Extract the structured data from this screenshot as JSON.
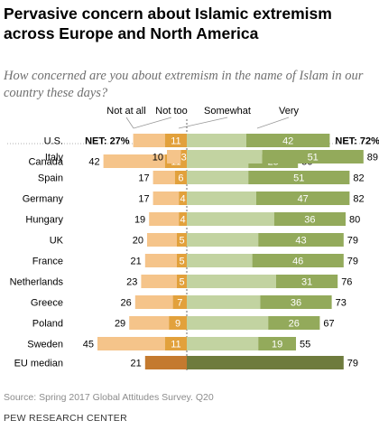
{
  "title": "Pervasive concern about Islamic extremism across Europe and North America",
  "subtitle": "How concerned are you about extremism in the name of Islam in our country these days?",
  "source": "Source: Spring 2017 Global Attitudes Survey. Q20",
  "org": "PEW RESEARCH CENTER",
  "net_label": "NET:",
  "colors": {
    "not_at_all": "#f5c48a",
    "not_too": "#e2a13c",
    "somewhat": "#c2d3a1",
    "very": "#93aa5b",
    "median_not": "#c47a2f",
    "median_concerned": "#6e7b3d",
    "very_label": "#ffffff"
  },
  "chart_data": {
    "type": "bar",
    "stacked": "diverging",
    "legend": [
      "Not at all",
      "Not too",
      "Somewhat",
      "Very"
    ],
    "groups": [
      {
        "rows": [
          {
            "label": "U.S.",
            "not_at_all": 16,
            "not_too": 11,
            "somewhat": 30,
            "very": 42,
            "net_not": "NET: 27%",
            "net_concerned": "NET: 72%"
          },
          {
            "label": "Canada",
            "not_at_all": 31,
            "not_too": 11,
            "somewhat": 31,
            "very": 25,
            "total_not": 42,
            "total_concerned": 56
          }
        ]
      },
      {
        "rows": [
          {
            "label": "Italy",
            "not_at_all": 7,
            "not_too": 3,
            "somewhat": 38,
            "very": 51,
            "total_not": 10,
            "total_concerned": 89
          },
          {
            "label": "Spain",
            "not_at_all": 11,
            "not_too": 6,
            "somewhat": 31,
            "very": 51,
            "total_not": 17,
            "total_concerned": 82
          },
          {
            "label": "Germany",
            "not_at_all": 13,
            "not_too": 4,
            "somewhat": 35,
            "very": 47,
            "total_not": 17,
            "total_concerned": 82
          },
          {
            "label": "Hungary",
            "not_at_all": 15,
            "not_too": 4,
            "somewhat": 44,
            "very": 36,
            "total_not": 19,
            "total_concerned": 80
          },
          {
            "label": "UK",
            "not_at_all": 15,
            "not_too": 5,
            "somewhat": 36,
            "very": 43,
            "total_not": 20,
            "total_concerned": 79
          },
          {
            "label": "France",
            "not_at_all": 16,
            "not_too": 5,
            "somewhat": 33,
            "very": 46,
            "total_not": 21,
            "total_concerned": 79
          },
          {
            "label": "Netherlands",
            "not_at_all": 18,
            "not_too": 5,
            "somewhat": 45,
            "very": 31,
            "total_not": 23,
            "total_concerned": 76
          },
          {
            "label": "Greece",
            "not_at_all": 19,
            "not_too": 7,
            "somewhat": 37,
            "very": 36,
            "total_not": 26,
            "total_concerned": 73
          },
          {
            "label": "Poland",
            "not_at_all": 20,
            "not_too": 9,
            "somewhat": 41,
            "very": 26,
            "total_not": 29,
            "total_concerned": 67
          },
          {
            "label": "Sweden",
            "not_at_all": 34,
            "not_too": 11,
            "somewhat": 36,
            "very": 19,
            "total_not": 45,
            "total_concerned": 55
          }
        ]
      }
    ],
    "median": {
      "label": "EU median",
      "total_not": 21,
      "total_concerned": 79
    }
  }
}
